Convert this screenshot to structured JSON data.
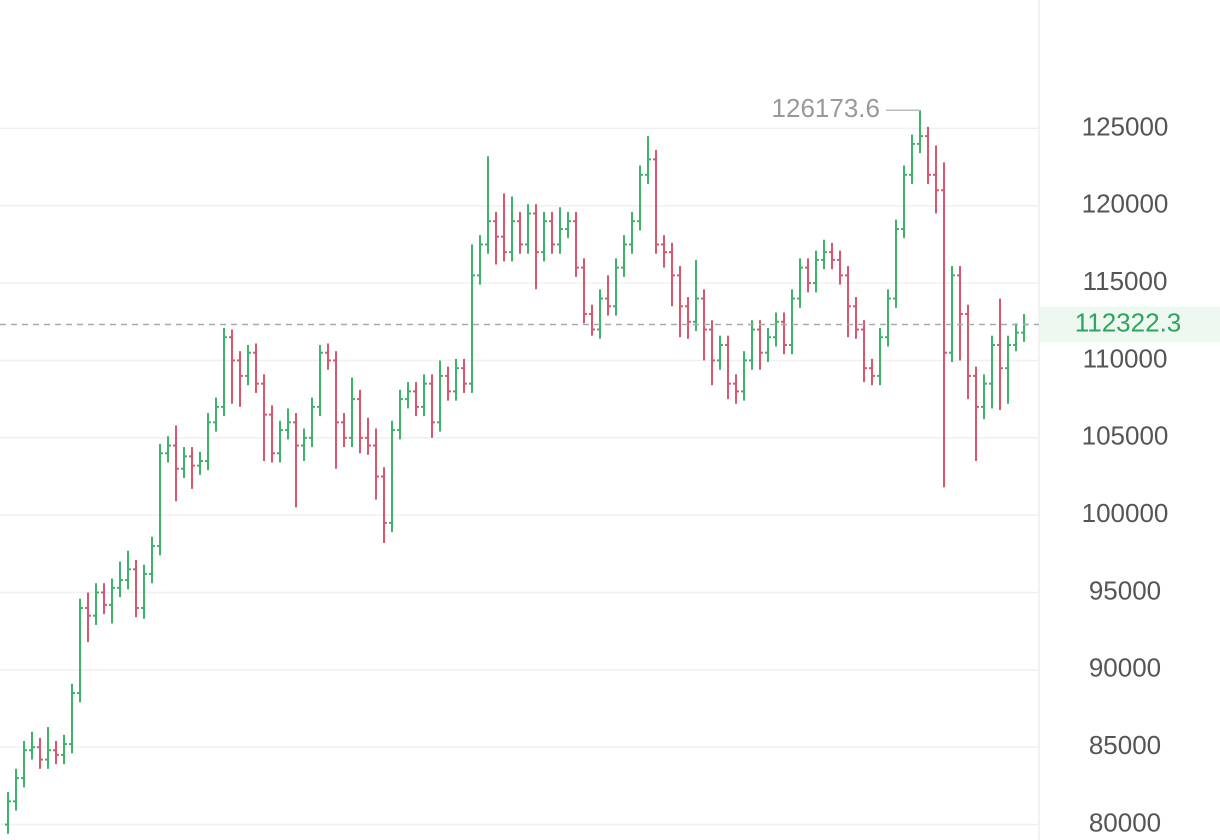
{
  "chart_data": {
    "type": "ohlc",
    "up_color": "#3db36b",
    "down_color": "#d9566d",
    "grid": true,
    "ylim": [
      79000,
      133300
    ],
    "yticks": [
      80000,
      85000,
      90000,
      95000,
      100000,
      105000,
      110000,
      115000,
      120000,
      125000
    ],
    "max_price": 126173.6,
    "last_price": 112322.3,
    "open": [
      80000,
      81500,
      83000,
      84800,
      85000,
      84200,
      84800,
      84500,
      85200,
      88500,
      94000,
      93500,
      95000,
      94200,
      95300,
      95800,
      96500,
      94000,
      96200,
      98000,
      104000,
      104500,
      103000,
      103800,
      103200,
      103500,
      106000,
      107000,
      111500,
      110000,
      109000,
      110500,
      108500,
      106500,
      104000,
      105500,
      106000,
      104500,
      105000,
      107000,
      110500,
      110000,
      106000,
      105000,
      107500,
      105000,
      104500,
      102500,
      99500,
      105500,
      107500,
      108000,
      107000,
      108500,
      106000,
      109000,
      108000,
      109500,
      108500,
      115500,
      117500,
      119000,
      118000,
      117000,
      119000,
      117500,
      119500,
      117000,
      119000,
      117500,
      118500,
      119000,
      116000,
      113000,
      112000,
      114000,
      113500,
      116000,
      117500,
      119000,
      122000,
      123000,
      117500,
      117000,
      115500,
      113500,
      112500,
      114000,
      112000,
      110000,
      111000,
      108500,
      108000,
      110000,
      112000,
      110500,
      111500,
      112500,
      111000,
      114000,
      116000,
      115000,
      116500,
      117000,
      116500,
      115500,
      113500,
      112000,
      109500,
      109000,
      111500,
      114000,
      118500,
      122000,
      124000,
      124500,
      122000,
      121000,
      110500,
      115500,
      113000,
      109000,
      107000,
      108500,
      111000,
      109500,
      111000,
      111800
    ],
    "high": [
      82100,
      83600,
      85400,
      86000,
      85600,
      86300,
      85400,
      85800,
      89100,
      94600,
      95000,
      95600,
      95600,
      95900,
      97000,
      97700,
      97100,
      96800,
      98600,
      104600,
      105100,
      105800,
      104400,
      104400,
      104100,
      106600,
      107600,
      112100,
      112000,
      110600,
      111000,
      111100,
      109100,
      107100,
      106100,
      106900,
      106600,
      105600,
      107600,
      111000,
      111100,
      110600,
      106600,
      108900,
      108100,
      106300,
      105600,
      103100,
      106100,
      108100,
      108600,
      108600,
      109100,
      109100,
      110000,
      109600,
      110100,
      110100,
      117500,
      118100,
      123200,
      119600,
      120800,
      120600,
      119600,
      120100,
      120100,
      119600,
      119600,
      119900,
      119600,
      119600,
      116600,
      113600,
      114600,
      115500,
      116600,
      118100,
      119600,
      122600,
      124500,
      123600,
      118100,
      117600,
      116100,
      114100,
      116500,
      114600,
      112600,
      111600,
      111600,
      109100,
      110600,
      112600,
      112600,
      112100,
      113100,
      113100,
      114600,
      116600,
      116600,
      117100,
      117800,
      117600,
      117100,
      116100,
      114100,
      112600,
      110100,
      112100,
      114600,
      119100,
      122600,
      124600,
      126173.6,
      125100,
      123900,
      122800,
      116100,
      116100,
      113600,
      109600,
      109100,
      111600,
      114000,
      111600,
      112400,
      113000
    ],
    "low": [
      79400,
      80900,
      82400,
      84200,
      83600,
      83600,
      83900,
      83900,
      84600,
      87900,
      91800,
      92900,
      93600,
      93000,
      94700,
      95200,
      93400,
      93300,
      95600,
      97400,
      103400,
      100900,
      102400,
      101700,
      102600,
      102900,
      105400,
      106400,
      107200,
      107000,
      108400,
      107900,
      103500,
      103400,
      103400,
      104900,
      100500,
      103500,
      104400,
      106400,
      109400,
      103000,
      104400,
      104400,
      104000,
      103900,
      101000,
      98200,
      98900,
      104900,
      106900,
      106400,
      106400,
      105000,
      105400,
      107400,
      107400,
      107900,
      107900,
      114900,
      116900,
      116200,
      116400,
      116400,
      116900,
      116900,
      114600,
      116400,
      116900,
      116900,
      117900,
      115400,
      112400,
      111600,
      111400,
      112900,
      112900,
      115400,
      116900,
      118400,
      121400,
      116900,
      116000,
      113500,
      111500,
      111400,
      111900,
      110000,
      108400,
      109400,
      107500,
      107200,
      107400,
      109400,
      109400,
      109900,
      110900,
      110400,
      110400,
      113400,
      114400,
      114400,
      115900,
      115900,
      114900,
      111500,
      111400,
      108600,
      108400,
      108400,
      110900,
      113400,
      117900,
      121400,
      123400,
      121400,
      119500,
      101800,
      109900,
      110000,
      107500,
      103500,
      106200,
      106900,
      106800,
      107200,
      110600,
      111200
    ],
    "close": [
      81500,
      83000,
      84800,
      85000,
      84200,
      84800,
      84500,
      85200,
      88500,
      94000,
      93500,
      95000,
      94200,
      95300,
      95800,
      96500,
      94000,
      96200,
      98000,
      104000,
      104500,
      103000,
      103800,
      103200,
      103500,
      106000,
      107000,
      111500,
      110000,
      109000,
      110500,
      108500,
      106500,
      104000,
      105500,
      106000,
      104500,
      105000,
      107000,
      110500,
      110000,
      106000,
      105000,
      107500,
      105000,
      104500,
      102500,
      99500,
      105500,
      107500,
      108000,
      107000,
      108500,
      106000,
      109000,
      108000,
      109500,
      108500,
      115500,
      117500,
      119000,
      118000,
      117000,
      119000,
      117500,
      119500,
      117000,
      119000,
      117500,
      118500,
      119000,
      116000,
      113000,
      112000,
      114000,
      113500,
      116000,
      117500,
      119000,
      122000,
      123000,
      117500,
      117000,
      115500,
      113500,
      112500,
      114000,
      112000,
      110000,
      111000,
      108500,
      108000,
      110000,
      112000,
      110500,
      111500,
      112500,
      111000,
      114000,
      116000,
      115000,
      116500,
      117000,
      116500,
      115500,
      113500,
      112000,
      109500,
      109000,
      111500,
      114000,
      118500,
      122000,
      124000,
      124500,
      122000,
      121000,
      110500,
      115500,
      113000,
      109000,
      107000,
      108500,
      111000,
      109500,
      111000,
      111800,
      112322.3
    ]
  }
}
